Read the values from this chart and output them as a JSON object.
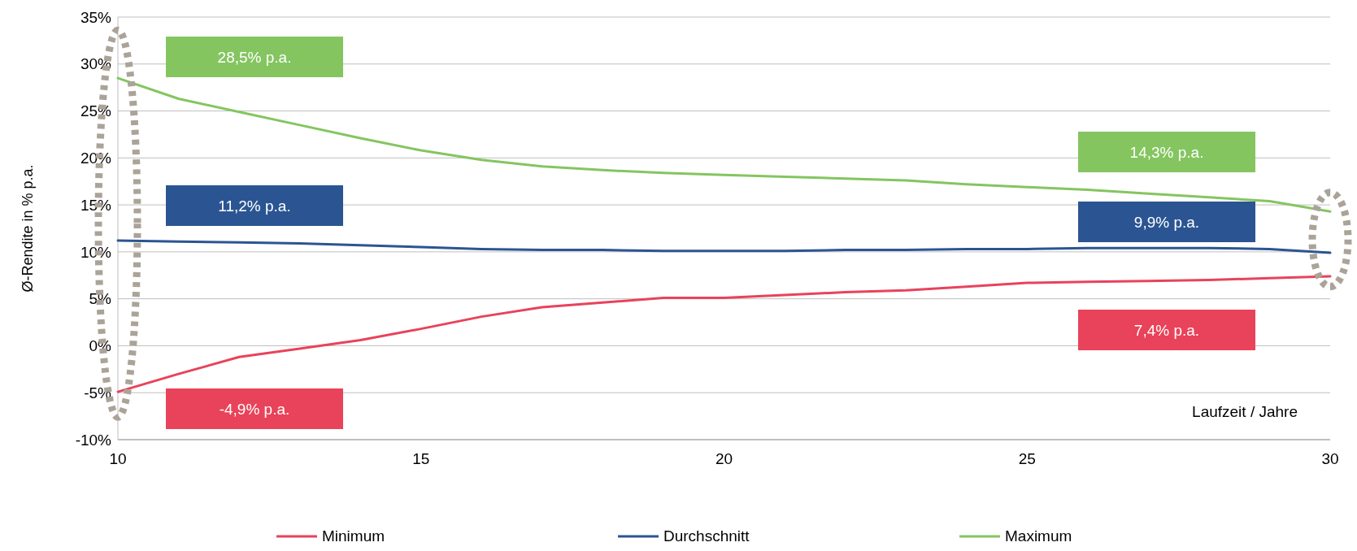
{
  "chart_data": {
    "type": "line",
    "xlabel": "Laufzeit / Jahre",
    "ylabel": "Ø-Rendite in % p.a.",
    "x": [
      10,
      11,
      12,
      13,
      14,
      15,
      16,
      17,
      18,
      19,
      20,
      21,
      22,
      23,
      24,
      25,
      26,
      27,
      28,
      29,
      30
    ],
    "series": [
      {
        "name": "Minimum",
        "color": "#e8435a",
        "values": [
          -4.9,
          -3.0,
          -1.2,
          -0.3,
          0.6,
          1.8,
          3.1,
          4.1,
          4.6,
          5.1,
          5.1,
          5.4,
          5.7,
          5.9,
          6.3,
          6.7,
          6.8,
          6.9,
          7.0,
          7.2,
          7.4
        ]
      },
      {
        "name": "Durchschnitt",
        "color": "#2b5592",
        "values": [
          11.2,
          11.1,
          11.0,
          10.9,
          10.7,
          10.5,
          10.3,
          10.2,
          10.2,
          10.1,
          10.1,
          10.1,
          10.2,
          10.2,
          10.3,
          10.3,
          10.4,
          10.4,
          10.4,
          10.3,
          9.9
        ]
      },
      {
        "name": "Maximum",
        "color": "#84c560",
        "values": [
          28.5,
          26.3,
          24.9,
          23.5,
          22.1,
          20.8,
          19.8,
          19.1,
          18.7,
          18.4,
          18.2,
          18.0,
          17.8,
          17.6,
          17.2,
          16.9,
          16.6,
          16.2,
          15.8,
          15.4,
          14.3
        ]
      }
    ],
    "xlim": [
      10,
      30
    ],
    "xticks": [
      10,
      15,
      20,
      25,
      30
    ],
    "ylim": [
      -10,
      35
    ],
    "yticks": [
      {
        "value": -10,
        "label": "-10%"
      },
      {
        "value": -5,
        "label": "-5%"
      },
      {
        "value": 0,
        "label": "0%"
      },
      {
        "value": 5,
        "label": "5%"
      },
      {
        "value": 10,
        "label": "10%"
      },
      {
        "value": 15,
        "label": "15%"
      },
      {
        "value": 20,
        "label": "20%"
      },
      {
        "value": 25,
        "label": "25%"
      },
      {
        "value": 30,
        "label": "30%"
      },
      {
        "value": 35,
        "label": "35%"
      }
    ],
    "grid": "y",
    "legend": "bottom",
    "line_style": "solid",
    "marker": "none",
    "annotations": [
      "28,5% p.a.",
      "11,2% p.a.",
      "-4,9% p.a.",
      "14,3% p.a.",
      "9,9% p.a.",
      "7,4% p.a."
    ]
  }
}
